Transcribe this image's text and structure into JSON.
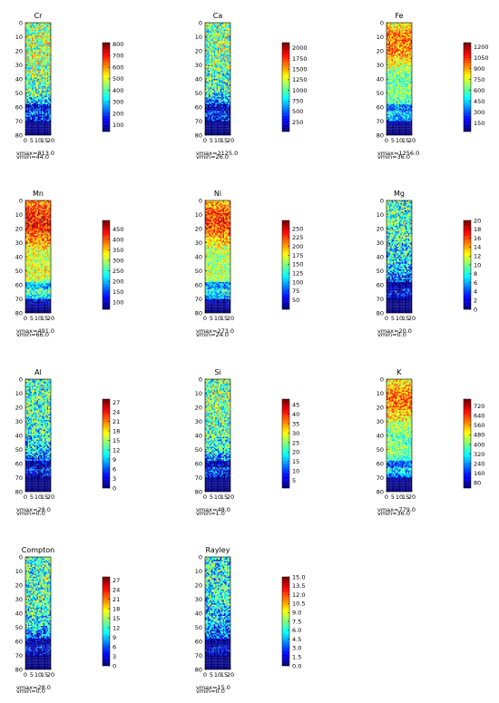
{
  "chart_data": [
    {
      "type": "heatmap",
      "title": "Cr",
      "vmax_text": "vmax=813.0",
      "vmin_text": "vmin=44.0",
      "vmin": 44,
      "vmax": 813,
      "cbar_ticks": [
        100,
        200,
        300,
        400,
        500,
        600,
        700,
        800
      ],
      "x_ticks": [
        "0",
        "5",
        "10",
        "15",
        "20"
      ],
      "y_ticks": [
        "0",
        "10",
        "20",
        "30",
        "40",
        "50",
        "60",
        "70",
        "80"
      ],
      "grid_size": [
        20,
        80
      ],
      "level": 0.5
    },
    {
      "type": "heatmap",
      "title": "Ca",
      "vmax_text": "vmax=2125.0",
      "vmin_text": "vmin=26.0",
      "vmin": 26,
      "vmax": 2125,
      "cbar_ticks": [
        250,
        500,
        750,
        1000,
        1250,
        1500,
        1750,
        2000
      ],
      "x_ticks": [
        "0",
        "5",
        "10",
        "15",
        "20"
      ],
      "y_ticks": [
        "0",
        "10",
        "20",
        "30",
        "40",
        "50",
        "60",
        "70",
        "80"
      ],
      "grid_size": [
        20,
        80
      ],
      "level": 0.45
    },
    {
      "type": "heatmap",
      "title": "Fe",
      "vmax_text": "vmax=1256.0",
      "vmin_text": "vmin=36.0",
      "vmin": 36,
      "vmax": 1256,
      "cbar_ticks": [
        150,
        300,
        450,
        600,
        750,
        900,
        1050,
        1200
      ],
      "x_ticks": [
        "0",
        "5",
        "10",
        "15",
        "20"
      ],
      "y_ticks": [
        "0",
        "10",
        "20",
        "30",
        "40",
        "50",
        "60",
        "70",
        "80"
      ],
      "grid_size": [
        20,
        80
      ],
      "level": 0.62
    },
    {
      "type": "heatmap",
      "title": "Mn",
      "vmax_text": "vmax=491.0",
      "vmin_text": "vmin=66.0",
      "vmin": 66,
      "vmax": 491,
      "cbar_ticks": [
        100,
        150,
        200,
        250,
        300,
        350,
        400,
        450
      ],
      "x_ticks": [
        "0",
        "5",
        "10",
        "15",
        "20"
      ],
      "y_ticks": [
        "0",
        "10",
        "20",
        "30",
        "40",
        "50",
        "60",
        "70",
        "80"
      ],
      "grid_size": [
        20,
        80
      ],
      "level": 0.72
    },
    {
      "type": "heatmap",
      "title": "Ni",
      "vmax_text": "vmax=273.0",
      "vmin_text": "vmin=24.0",
      "vmin": 24,
      "vmax": 273,
      "cbar_ticks": [
        50,
        75,
        100,
        125,
        150,
        175,
        200,
        225,
        250
      ],
      "x_ticks": [
        "0",
        "5",
        "10",
        "15",
        "20"
      ],
      "y_ticks": [
        "0",
        "10",
        "20",
        "30",
        "40",
        "50",
        "60",
        "70",
        "80"
      ],
      "grid_size": [
        20,
        80
      ],
      "level": 0.68
    },
    {
      "type": "heatmap",
      "title": "Mg",
      "vmax_text": "vmax=20.0",
      "vmin_text": "vmin=0.0",
      "vmin": 0,
      "vmax": 20,
      "cbar_ticks": [
        0,
        2,
        4,
        6,
        8,
        10,
        12,
        14,
        16,
        18,
        20
      ],
      "x_ticks": [
        "0",
        "5",
        "10",
        "15",
        "20"
      ],
      "y_ticks": [
        "0",
        "10",
        "20",
        "30",
        "40",
        "50",
        "60",
        "70",
        "80"
      ],
      "grid_size": [
        20,
        80
      ],
      "level": 0.38
    },
    {
      "type": "heatmap",
      "title": "Al",
      "vmax_text": "vmax=28.0",
      "vmin_text": "vmin=0.0",
      "vmin": 0,
      "vmax": 28,
      "cbar_ticks": [
        0,
        3,
        6,
        9,
        12,
        15,
        18,
        21,
        24,
        27
      ],
      "x_ticks": [
        "0",
        "5",
        "10",
        "15",
        "20"
      ],
      "y_ticks": [
        "0",
        "10",
        "20",
        "30",
        "40",
        "50",
        "60",
        "70",
        "80"
      ],
      "grid_size": [
        20,
        80
      ],
      "level": 0.4
    },
    {
      "type": "heatmap",
      "title": "Si",
      "vmax_text": "vmax=48.0",
      "vmin_text": "vmin=1.0",
      "vmin": 1,
      "vmax": 48,
      "cbar_ticks": [
        5,
        10,
        15,
        20,
        25,
        30,
        35,
        40,
        45
      ],
      "x_ticks": [
        "0",
        "5",
        "10",
        "15",
        "20"
      ],
      "y_ticks": [
        "0",
        "10",
        "20",
        "30",
        "40",
        "50",
        "60",
        "70",
        "80"
      ],
      "grid_size": [
        20,
        80
      ],
      "level": 0.45
    },
    {
      "type": "heatmap",
      "title": "K",
      "vmax_text": "vmax=779.0",
      "vmin_text": "vmin=36.0",
      "vmin": 36,
      "vmax": 779,
      "cbar_ticks": [
        80,
        160,
        240,
        320,
        400,
        480,
        560,
        640,
        720
      ],
      "x_ticks": [
        "0",
        "5",
        "10",
        "15",
        "20"
      ],
      "y_ticks": [
        "0",
        "10",
        "20",
        "30",
        "40",
        "50",
        "60",
        "70",
        "80"
      ],
      "grid_size": [
        20,
        80
      ],
      "level": 0.62
    },
    {
      "type": "heatmap",
      "title": "Compton",
      "vmax_text": "vmax=28.0",
      "vmin_text": "vmin=0.0",
      "vmin": 0,
      "vmax": 28,
      "cbar_ticks": [
        0,
        3,
        6,
        9,
        12,
        15,
        18,
        21,
        24,
        27
      ],
      "x_ticks": [
        "0",
        "5",
        "10",
        "15",
        "20"
      ],
      "y_ticks": [
        "0",
        "10",
        "20",
        "30",
        "40",
        "50",
        "60",
        "70",
        "80"
      ],
      "grid_size": [
        20,
        80
      ],
      "level": 0.4
    },
    {
      "type": "heatmap",
      "title": "Rayley",
      "vmax_text": "vmax=15.0",
      "vmin_text": "vmin=0.0",
      "vmin": 0,
      "vmax": 15,
      "cbar_ticks": [
        "0.0",
        "1.5",
        "3.0",
        "4.5",
        "6.0",
        "7.5",
        "9.0",
        "10.5",
        "12.0",
        "13.5",
        "15.0"
      ],
      "x_ticks": [
        "0",
        "5",
        "10",
        "15",
        "20"
      ],
      "y_ticks": [
        "0",
        "10",
        "20",
        "30",
        "40",
        "50",
        "60",
        "70",
        "80"
      ],
      "grid_size": [
        20,
        80
      ],
      "level": 0.35
    }
  ]
}
